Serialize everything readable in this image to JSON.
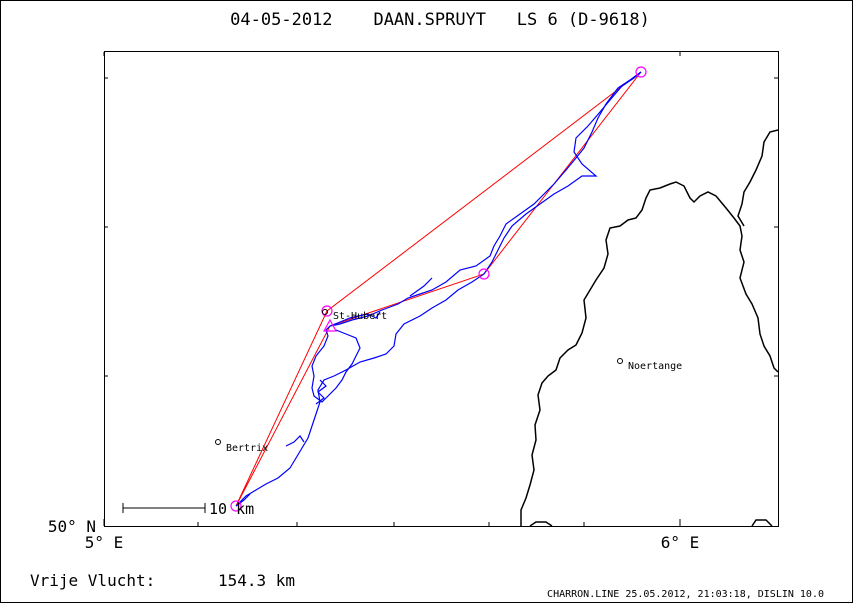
{
  "title": "04-05-2012    DAAN.SPRUYT   LS 6 (D-9618)",
  "axes": {
    "x_tick_left": "5° E",
    "x_tick_right": "6° E",
    "y_tick_bottom": "50° N"
  },
  "places": [
    {
      "name": "St-Hubert"
    },
    {
      "name": "Bertrix"
    },
    {
      "name": "Noertange"
    }
  ],
  "scale_bar": {
    "label": "10 km"
  },
  "flight": {
    "label": "Vrije Vlucht:",
    "distance": "154.3 km"
  },
  "footer": "CHARRON.LINE 25.05.2012, 21:03:18, DISLIN 10.0",
  "colors": {
    "task": "#ff0000",
    "track": "#0000ff",
    "turnpoint": "#ff00ff",
    "border": "#000000",
    "frame": "#000000"
  }
}
